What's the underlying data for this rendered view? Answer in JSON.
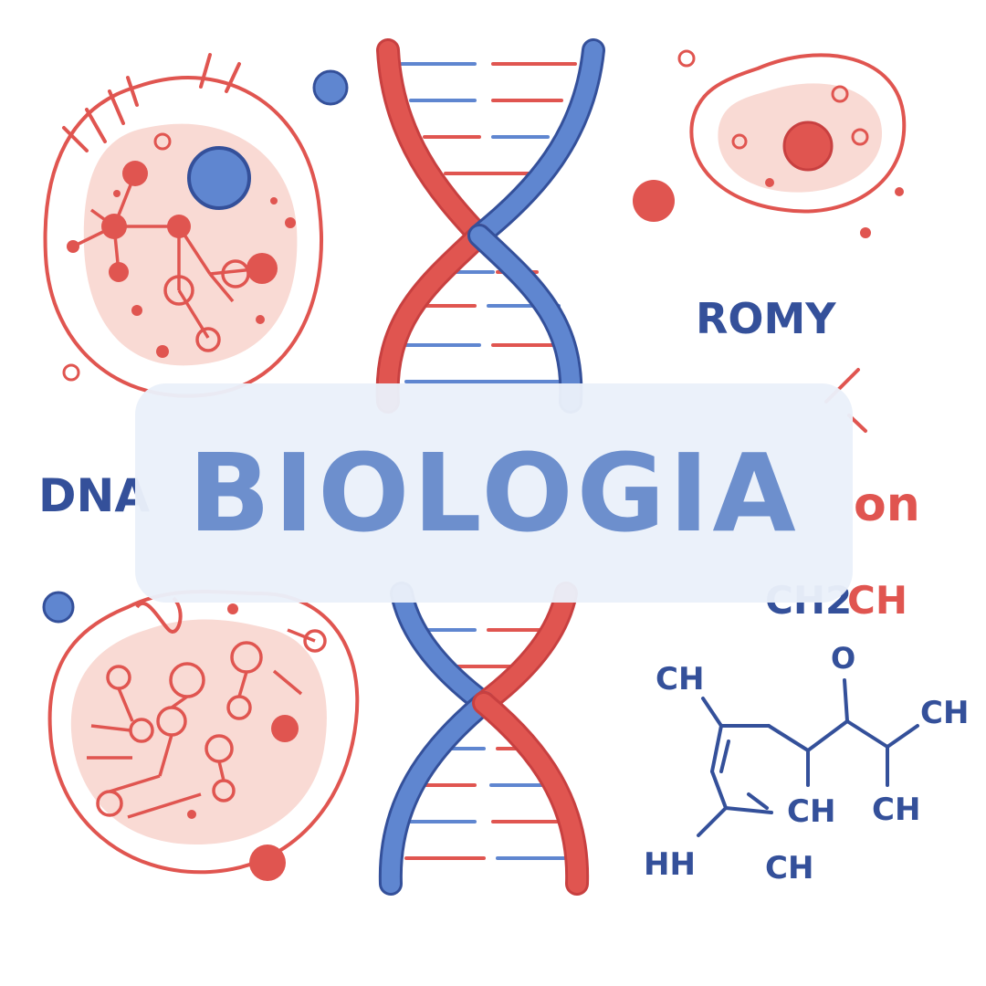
{
  "title": "BIOLOGIA",
  "labels": {
    "dna": "DNA",
    "romy": "ROMY",
    "on": "on",
    "ch2ch_prefix": "CH2",
    "ch2ch_suffix": "CH",
    "ch_top_left": "CH",
    "oxygen": "O",
    "ch_right": "CH",
    "ch_bottom_mid": "CH",
    "ch_bottom_right": "CH",
    "hh": "HH",
    "ch_bottom": "CH"
  },
  "colors": {
    "red": "#e05550",
    "blue": "#5f86d0",
    "navy": "#34509a",
    "pink_fill": "#f9dad4",
    "title_text": "#6d8fcd",
    "card_bg": "#eaf0fa"
  },
  "icons": [
    "dna-helix-icon",
    "cell-icon",
    "molecule-icon"
  ]
}
